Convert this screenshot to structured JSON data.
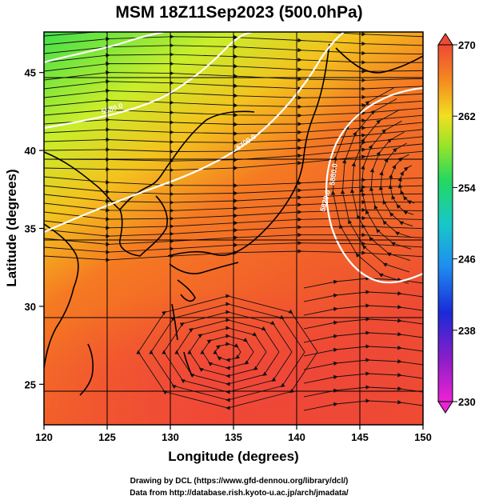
{
  "title": "MSM 18Z11Sep2023 (500.0hPa)",
  "x_axis": {
    "label": "Longitude (degrees)",
    "range": [
      120,
      150
    ],
    "ticks": [
      120,
      125,
      130,
      135,
      140,
      145,
      150
    ]
  },
  "y_axis": {
    "label": "Latitude  (degrees)",
    "range": [
      22.4,
      47.6
    ],
    "ticks": [
      25,
      30,
      35,
      40,
      45
    ]
  },
  "colorbar": {
    "min": 230,
    "max": 270,
    "tick_labels": [
      "270",
      "262",
      "254",
      "246",
      "238",
      "230"
    ]
  },
  "contours": [
    {
      "label": "5580.0"
    },
    {
      "label": "5700.0"
    },
    {
      "label": "5820.0"
    },
    {
      "label": "5880.0"
    }
  ],
  "credits": {
    "line1": "Drawing by DCL (https://www.gfd-dennou.org/library/dcl/)",
    "line2": "Data from http://database.rish.kyoto-u.ac.jp/arch/jmadata/"
  }
}
